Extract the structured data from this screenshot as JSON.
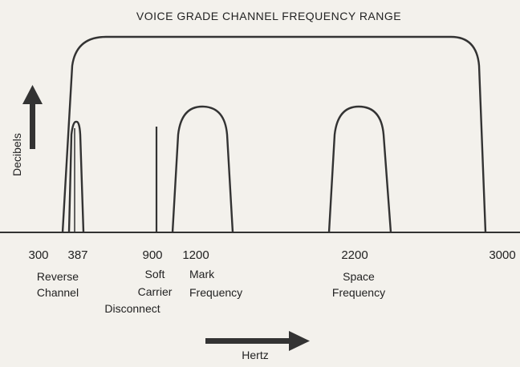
{
  "title": "VOICE GRADE CHANNEL FREQUENCY RANGE",
  "y_axis_label": "Decibels",
  "x_axis_label": "Hertz",
  "frequencies": [
    "300",
    "387",
    "900",
    "1200",
    "2200",
    "3000"
  ],
  "captions": [
    {
      "lines": [
        "Reverse",
        "Channel"
      ]
    },
    {
      "lines": [
        "Soft",
        "Carrier",
        "Disconnect"
      ]
    },
    {
      "lines": [
        "Mark",
        "Frequency"
      ]
    },
    {
      "lines": [
        "Space",
        "Frequency"
      ]
    }
  ]
}
